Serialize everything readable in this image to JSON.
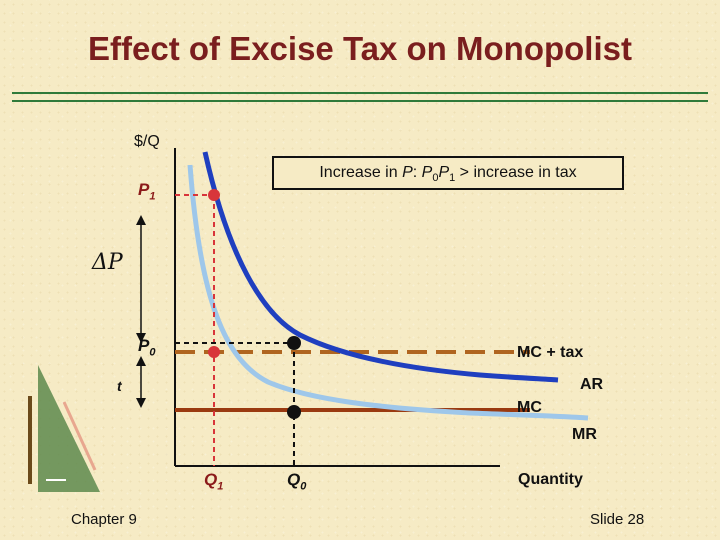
{
  "slide": {
    "title": "Effect of Excise Tax on Monopolist",
    "chapter": "Chapter 9",
    "slide_number": "Slide 28"
  },
  "axes": {
    "y_label": "$/Q",
    "x_label": "Quantity"
  },
  "labels": {
    "p1": "P",
    "p1_sub": "1",
    "p0": "P",
    "p0_sub": "0",
    "delta_p": "ΔP",
    "t": "t",
    "q1": "Q",
    "q1_sub": "1",
    "q0": "Q",
    "q0_sub": "0",
    "mc_tax": "MC + tax",
    "ar": "AR",
    "mc": "MC",
    "mr": "MR"
  },
  "callout": {
    "part1": "Increase in ",
    "part2": "P",
    "part3": ": ",
    "part4": "P",
    "part5": "0",
    "part6": "P",
    "part7": "1",
    "part8": " > increase in tax"
  },
  "colors": {
    "title": "#7a1e1e",
    "ar_curve": "#1f3fbf",
    "mr_curve": "#9ec7ea",
    "mc_line": "#9a3a10",
    "mc_tax_line": "#b0651f",
    "q1_guide": "#d8353a",
    "p0_guide": "#111111",
    "rule": "#2f7a3a"
  }
}
